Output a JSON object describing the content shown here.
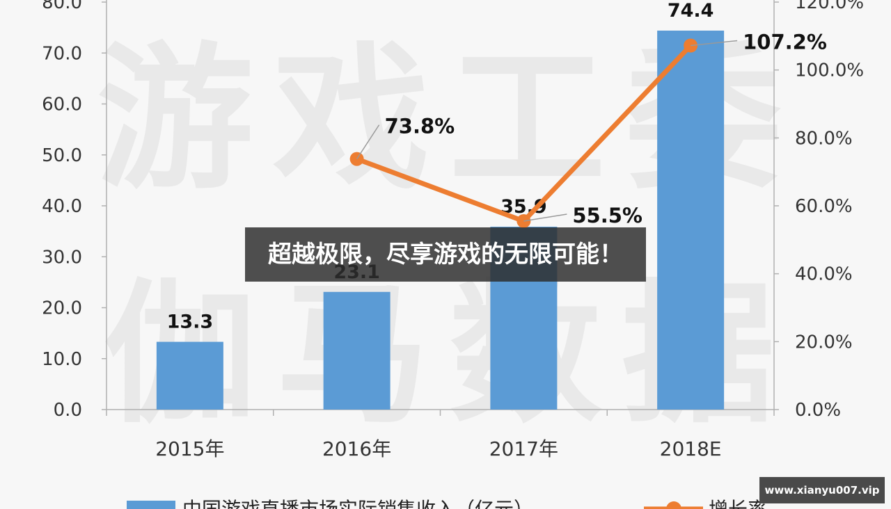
{
  "chart_data": {
    "type": "bar",
    "categories": [
      "2015年",
      "2016年",
      "2017年",
      "2018E"
    ],
    "series": [
      {
        "name": "中国游戏直播市场实际销售收入（亿元）",
        "type": "bar",
        "axis": "left",
        "values": [
          13.3,
          23.1,
          35.9,
          74.4
        ],
        "labels": [
          "13.3",
          "23.1",
          "35.9",
          "74.4"
        ],
        "color": "#5b9bd5"
      },
      {
        "name": "增长率",
        "type": "line",
        "axis": "right",
        "values": [
          null,
          73.8,
          55.5,
          107.2
        ],
        "labels": [
          "",
          "73.8%",
          "55.5%",
          "107.2%"
        ],
        "color": "#ed7d31"
      }
    ],
    "y_left": {
      "lim": [
        0,
        80
      ],
      "ticks": [
        "0.0",
        "10.0",
        "20.0",
        "30.0",
        "40.0",
        "50.0",
        "60.0",
        "70.0",
        "80.0"
      ]
    },
    "y_right": {
      "lim": [
        0,
        120
      ],
      "ticks": [
        "0.0%",
        "20.0%",
        "40.0%",
        "60.0%",
        "80.0%",
        "100.0%",
        "120.0%"
      ]
    },
    "title": "",
    "xlabel": "",
    "ylabel": "",
    "grid": false,
    "legend": "bottom"
  },
  "watermark": {
    "line1": "游戏工委",
    "line2": "伽马数据"
  },
  "overlay": {
    "banner": "超越极限，尽享游戏的无限可能！",
    "site": "www.xianyu007.vip"
  }
}
